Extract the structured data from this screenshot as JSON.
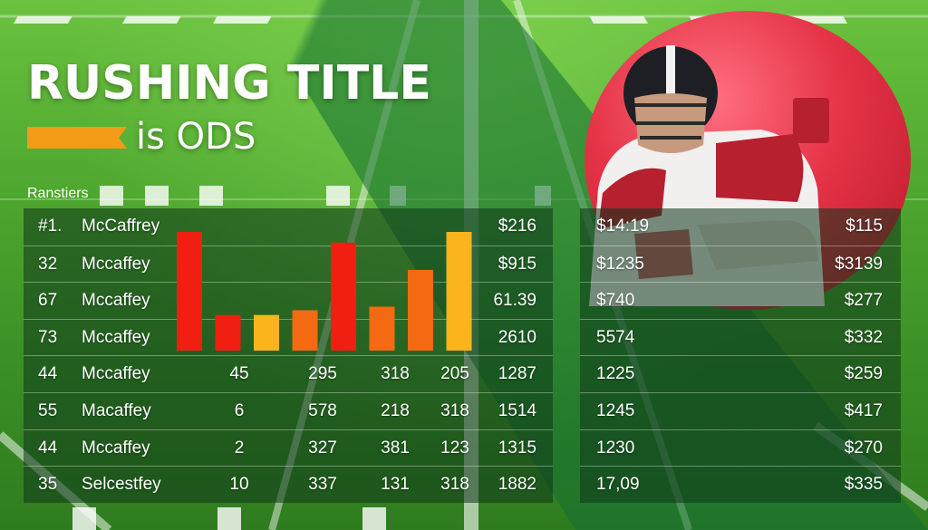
{
  "header": {
    "title": "RUSHING TITLE",
    "subtitle": "is ODS"
  },
  "section_label": "Ranstiers",
  "colors": {
    "field_green": "#4fa82f",
    "accent_orange": "#f39a16",
    "bar_red": "#f01f12",
    "bar_orange": "#f46a12",
    "bar_yellow": "#fbb41c",
    "ball_red": "#e53347"
  },
  "chart_data": {
    "type": "bar",
    "values": [
      100,
      30,
      30,
      34,
      91,
      37,
      68,
      100
    ],
    "colors": [
      "#f01f12",
      "#f01f12",
      "#fbb41c",
      "#f46a12",
      "#f01f12",
      "#f46a12",
      "#f46a12",
      "#fbb41c"
    ]
  },
  "left_table": {
    "rows": [
      {
        "rank": "#1.",
        "name": "McCaffrey",
        "v1": "",
        "v2": "",
        "v3": "",
        "v4": "",
        "total": "$216"
      },
      {
        "rank": "32",
        "name": "Mccaffey",
        "v1": "",
        "v2": "",
        "v3": "",
        "v4": "",
        "total": "$915"
      },
      {
        "rank": "67",
        "name": "Mccaffey",
        "v1": "",
        "v2": "",
        "v3": "",
        "v4": "",
        "total": "61.39"
      },
      {
        "rank": "73",
        "name": "Mccaffey",
        "v1": "",
        "v2": "",
        "v3": "",
        "v4": "",
        "total": "2610"
      },
      {
        "rank": "44",
        "name": "Mccaffey",
        "v1": "45",
        "v2": "295",
        "v3": "318",
        "v4": "205",
        "total": "1287"
      },
      {
        "rank": "55",
        "name": "Macaffey",
        "v1": "6",
        "v2": "578",
        "v3": "218",
        "v4": "318",
        "total": "1514"
      },
      {
        "rank": "44",
        "name": "Mccaffey",
        "v1": "2",
        "v2": "327",
        "v3": "381",
        "v4": "123",
        "total": "1315"
      },
      {
        "rank": "35",
        "name": "Selcestfey",
        "v1": "10",
        "v2": "337",
        "v3": "131",
        "v4": "318",
        "total": "1882"
      }
    ]
  },
  "right_table": {
    "rows": [
      {
        "left": "$14:19",
        "right": "$115"
      },
      {
        "left": "$1235",
        "right": "$3139"
      },
      {
        "left": "$740",
        "right": "$277"
      },
      {
        "left": "5574",
        "right": "$332"
      },
      {
        "left": "1225",
        "right": "$259"
      },
      {
        "left": "1245",
        "right": "$417"
      },
      {
        "left": "1230",
        "right": "$270"
      },
      {
        "left": "17,09",
        "right": "$335"
      }
    ]
  }
}
